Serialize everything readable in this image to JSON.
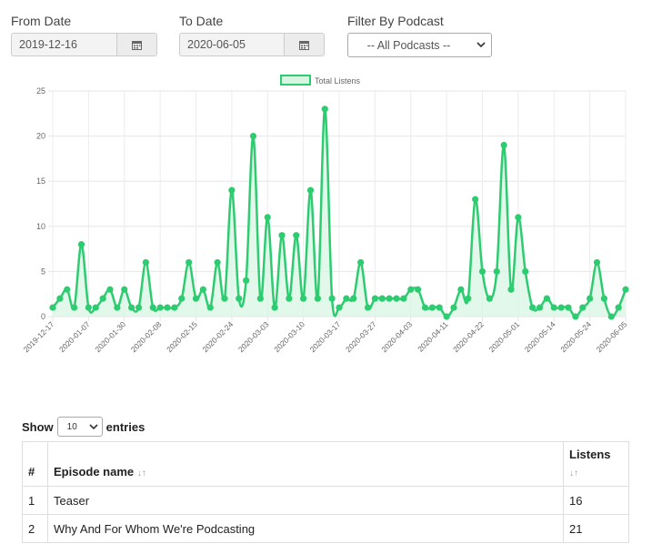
{
  "filters": {
    "from_label": "From Date",
    "from_value": "2019-12-16",
    "to_label": "To Date",
    "to_value": "2020-06-05",
    "podcast_label": "Filter By Podcast",
    "podcast_value": "-- All Podcasts --"
  },
  "chart_data": {
    "type": "line",
    "legend": {
      "label": "Total Listens",
      "position": "top-center"
    },
    "line_color": "#2ecc71",
    "fill_color": "#d8f5e3",
    "ylim": [
      0,
      25
    ],
    "y_ticks": [
      "0",
      "5",
      "10",
      "15",
      "20",
      "25"
    ],
    "x_tick_labels": [
      "2019-12-17",
      "2020-01-07",
      "2020-01-30",
      "2020-02-08",
      "2020-02-15",
      "2020-02-24",
      "2020-03-03",
      "2020-03-10",
      "2020-03-17",
      "2020-03-27",
      "2020-04-03",
      "2020-04-11",
      "2020-04-22",
      "2020-05-01",
      "2020-05-14",
      "2020-05-24",
      "2020-06-05"
    ],
    "values": [
      1,
      2,
      3,
      1,
      8,
      1,
      1,
      2,
      3,
      1,
      3,
      1,
      1,
      6,
      1,
      1,
      1,
      1,
      2,
      6,
      2,
      3,
      1,
      6,
      2,
      14,
      2,
      4,
      20,
      2,
      11,
      1,
      9,
      2,
      9,
      2,
      14,
      2,
      23,
      2,
      1,
      2,
      2,
      6,
      1,
      2,
      2,
      2,
      2,
      2,
      3,
      3,
      1,
      1,
      1,
      0,
      1,
      3,
      2,
      13,
      5,
      2,
      5,
      19,
      3,
      11,
      5,
      1,
      1,
      2,
      1,
      1,
      1,
      0,
      1,
      2,
      6,
      2,
      0,
      1,
      3
    ],
    "grid": true
  },
  "table": {
    "show_label": "Show",
    "page_size": "10",
    "entries_label": "entries",
    "headers": {
      "num": "#",
      "episode": "Episode name",
      "listens": "Listens"
    },
    "rows": [
      {
        "num": "1",
        "episode": "Teaser",
        "listens": "16"
      },
      {
        "num": "2",
        "episode": "Why And For Whom We're Podcasting",
        "listens": "21"
      }
    ]
  },
  "icons": {
    "calendar": "calendar-icon",
    "dropdown": "chevron-down-icon",
    "sort": "sort-icon"
  }
}
